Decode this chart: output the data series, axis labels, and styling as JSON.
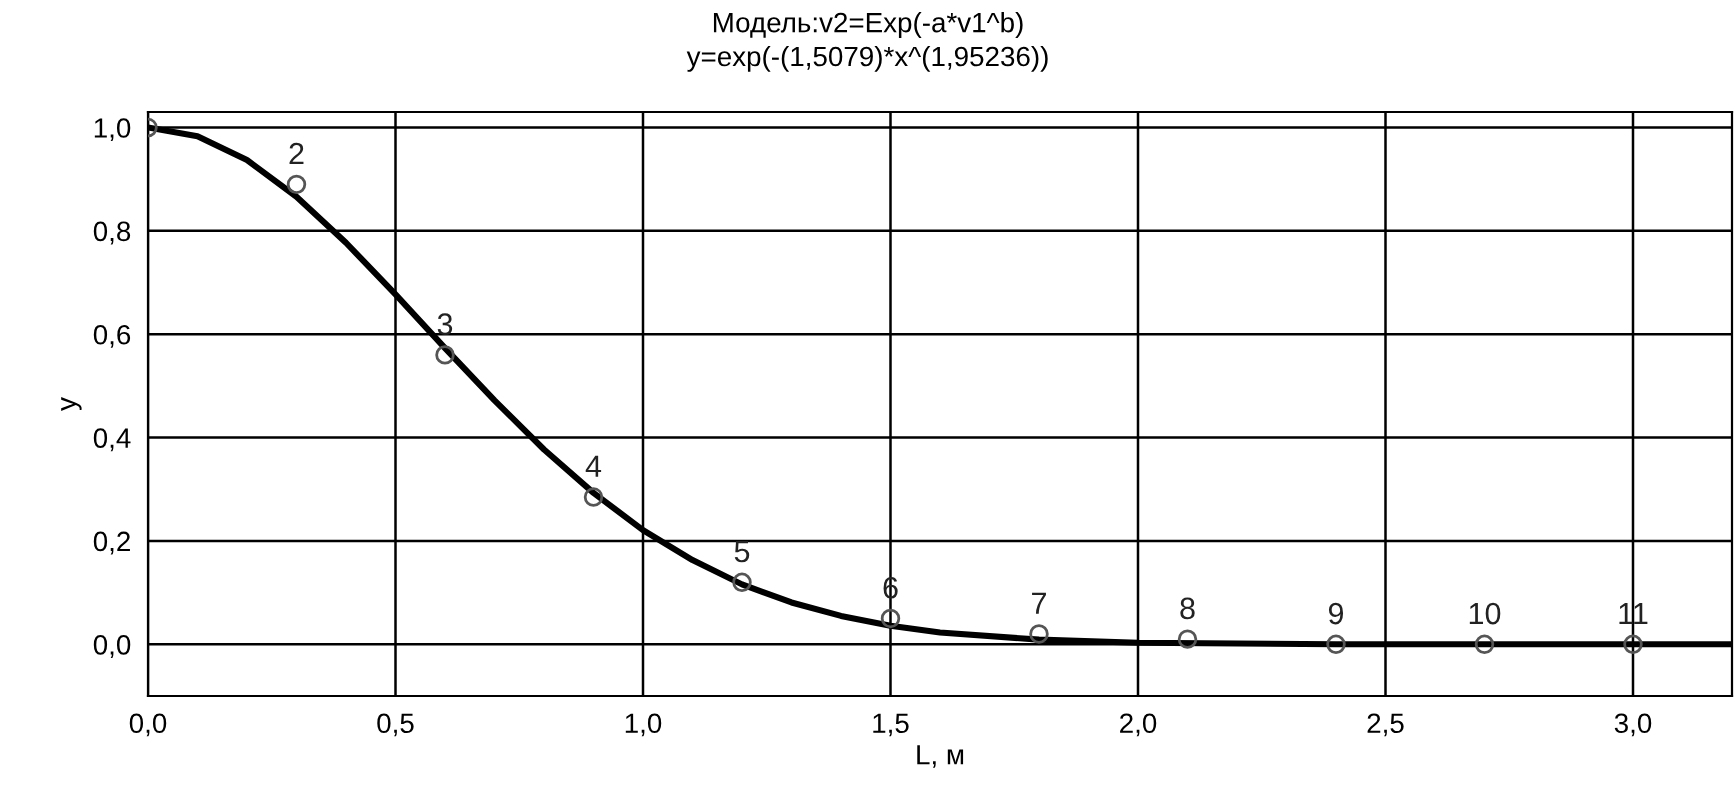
{
  "chart_data": {
    "type": "scatter",
    "title": "Модель:v2=Exp(-a*v1^b)\ny=exp(-(1,5079)*x^(1,95236))",
    "xlabel": "L, м",
    "ylabel": "y",
    "x": [
      0,
      0.3,
      0.6,
      0.9,
      1.2,
      1.5,
      1.8,
      2.1,
      2.4,
      2.7,
      3.0
    ],
    "series": [
      {
        "color": "#555555",
        "marker": "circle",
        "values": [
          1.0,
          0.89,
          0.56,
          0.285,
          0.12,
          0.05,
          0.02,
          0.01,
          0.0,
          0.0,
          0.0
        ]
      },
      {
        "type": "line",
        "color": "#000000",
        "marker": "none",
        "line_style": "solid",
        "x": [
          0,
          0.1,
          0.2,
          0.3,
          0.4,
          0.5,
          0.6,
          0.7,
          0.8,
          0.9,
          1.0,
          1.1,
          1.2,
          1.3,
          1.4,
          1.5,
          1.6,
          1.8,
          2.0,
          2.4,
          2.8,
          3.2
        ],
        "values": [
          1.0,
          0.983,
          0.937,
          0.866,
          0.777,
          0.677,
          0.573,
          0.472,
          0.377,
          0.293,
          0.221,
          0.163,
          0.116,
          0.081,
          0.055,
          0.036,
          0.023,
          0.009,
          0.003,
          0.0,
          0.0,
          0.0
        ]
      }
    ],
    "annotations": [
      {
        "text": "2",
        "x": 0.3,
        "y": 0.89
      },
      {
        "text": "3",
        "x": 0.6,
        "y": 0.56
      },
      {
        "text": "4",
        "x": 0.9,
        "y": 0.285
      },
      {
        "text": "5",
        "x": 1.2,
        "y": 0.12
      },
      {
        "text": "6",
        "x": 1.5,
        "y": 0.05
      },
      {
        "text": "7",
        "x": 1.8,
        "y": 0.02
      },
      {
        "text": "8",
        "x": 2.1,
        "y": 0.01
      },
      {
        "text": "9",
        "x": 2.4,
        "y": 0.0
      },
      {
        "text": "10",
        "x": 2.7,
        "y": 0.0
      },
      {
        "text": "11",
        "x": 3.0,
        "y": 0.0
      }
    ],
    "xlim": [
      0,
      3.2
    ],
    "ylim": [
      -0.1,
      1.03
    ],
    "xticks": [
      {
        "value": 0,
        "label": "0,0"
      },
      {
        "value": 0.5,
        "label": "0,5"
      },
      {
        "value": 1.0,
        "label": "1,0"
      },
      {
        "value": 1.5,
        "label": "1,5"
      },
      {
        "value": 2.0,
        "label": "2,0"
      },
      {
        "value": 2.5,
        "label": "2,5"
      },
      {
        "value": 3.0,
        "label": "3,0"
      }
    ],
    "yticks": [
      {
        "value": 0,
        "label": "0,0"
      },
      {
        "value": 0.2,
        "label": "0,2"
      },
      {
        "value": 0.4,
        "label": "0,4"
      },
      {
        "value": 0.6,
        "label": "0,6"
      },
      {
        "value": 0.8,
        "label": "0,8"
      },
      {
        "value": 1.0,
        "label": "1,0"
      }
    ],
    "grid": true,
    "legend": false
  }
}
